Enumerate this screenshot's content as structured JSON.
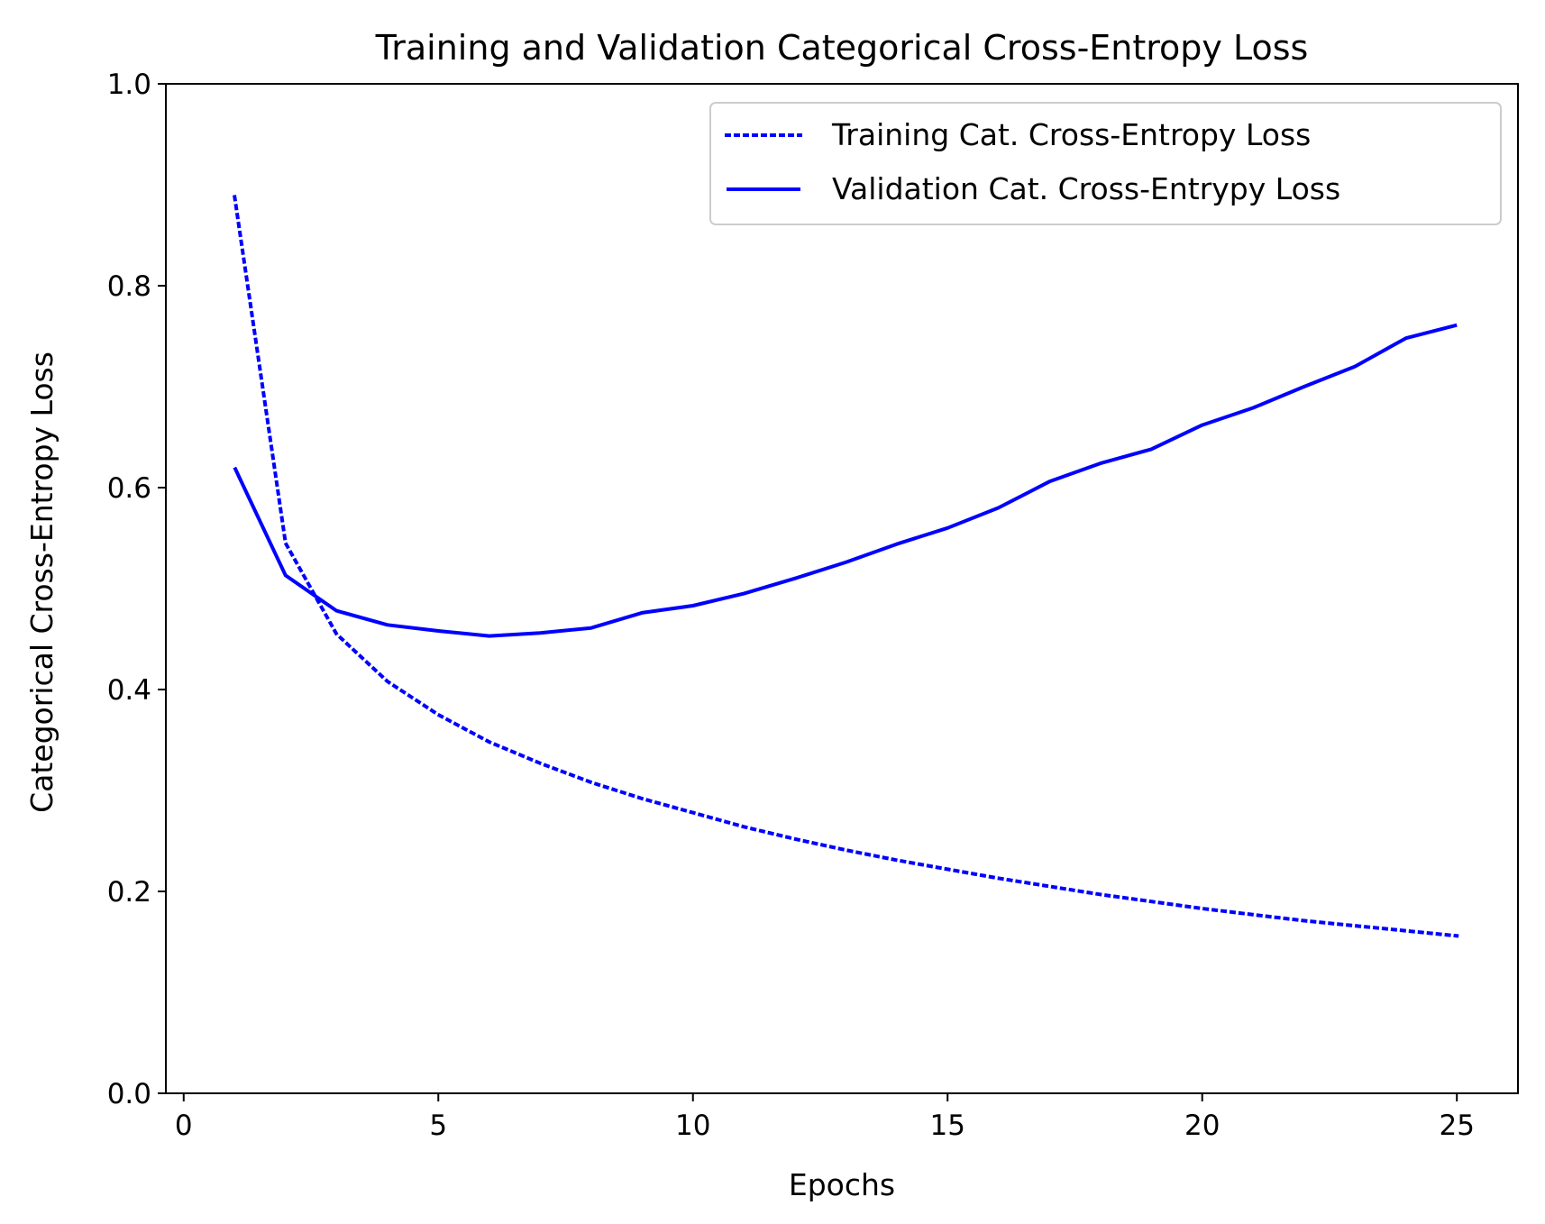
{
  "chart_data": {
    "type": "line",
    "title": "Training and Validation Categorical Cross-Entropy Loss",
    "xlabel": "Epochs",
    "ylabel": "Categorical Cross-Entropy Loss",
    "xlim": [
      -0.35,
      26.2
    ],
    "ylim": [
      0,
      1.0
    ],
    "xticks": [
      0,
      5,
      10,
      15,
      20,
      25
    ],
    "yticks": [
      0.0,
      0.2,
      0.4,
      0.6,
      0.8,
      1.0
    ],
    "xtick_labels": [
      "0",
      "5",
      "10",
      "15",
      "20",
      "25"
    ],
    "ytick_labels": [
      "0.0",
      "0.2",
      "0.4",
      "0.6",
      "0.8",
      "1.0"
    ],
    "grid": false,
    "legend_position": "top-right",
    "x": [
      1,
      2,
      3,
      4,
      5,
      6,
      7,
      8,
      9,
      10,
      11,
      12,
      13,
      14,
      15,
      16,
      17,
      18,
      19,
      20,
      21,
      22,
      23,
      24,
      25
    ],
    "series": [
      {
        "name": "Training Cat. Cross-Entropy Loss",
        "style": "dotted",
        "color": "#0000ff",
        "values": [
          0.888,
          0.545,
          0.455,
          0.408,
          0.375,
          0.348,
          0.327,
          0.308,
          0.292,
          0.278,
          0.264,
          0.252,
          0.241,
          0.231,
          0.222,
          0.213,
          0.205,
          0.197,
          0.19,
          0.183,
          0.177,
          0.171,
          0.166,
          0.161,
          0.156
        ]
      },
      {
        "name": "Validation Cat. Cross-Entrypy Loss",
        "style": "solid",
        "color": "#0000ff",
        "values": [
          0.62,
          0.513,
          0.478,
          0.464,
          0.458,
          0.453,
          0.456,
          0.461,
          0.476,
          0.483,
          0.495,
          0.51,
          0.526,
          0.544,
          0.56,
          0.58,
          0.606,
          0.624,
          0.638,
          0.662,
          0.679,
          0.7,
          0.72,
          0.748,
          0.761
        ]
      }
    ]
  }
}
